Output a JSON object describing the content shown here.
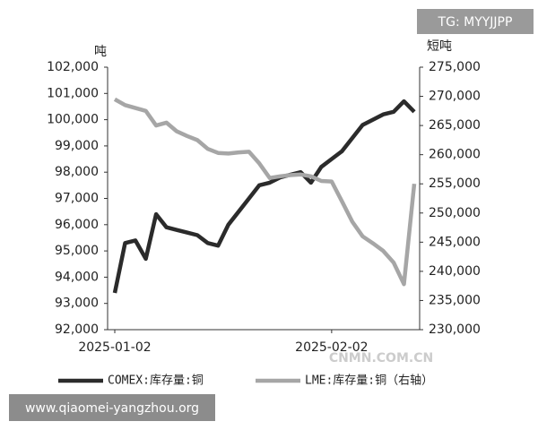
{
  "chart_data": {
    "type": "line",
    "y_unit": "吨",
    "y2_unit": "短吨",
    "categories": [
      "2025-01-02",
      null,
      null,
      null,
      null,
      null,
      null,
      null,
      null,
      null,
      null,
      null,
      null,
      null,
      null,
      null,
      null,
      null,
      null,
      null,
      null,
      "2025-02-02",
      null,
      null,
      null,
      null,
      null,
      null,
      null,
      null
    ],
    "series": [
      {
        "name": "COMEX:库存量:铜",
        "color": "#2b2b2b",
        "axis": "y",
        "values": [
          93400,
          95300,
          95400,
          94700,
          96400,
          95900,
          95800,
          95700,
          95600,
          95300,
          95200,
          96000,
          96500,
          97000,
          97500,
          97600,
          97800,
          97900,
          98000,
          97600,
          98200,
          98500,
          98800,
          99300,
          99800,
          100000,
          100200,
          100300,
          100700,
          100300
        ]
      },
      {
        "name": "LME:库存量:铜（右轴）",
        "color": "#a6a6a6",
        "axis": "y2",
        "values": [
          269500,
          268500,
          268000,
          267500,
          265000,
          265500,
          264000,
          263200,
          262500,
          261000,
          260300,
          260200,
          260400,
          260500,
          258500,
          256000,
          256300,
          256500,
          256600,
          256300,
          255500,
          255400,
          252000,
          248500,
          246000,
          244800,
          243500,
          241500,
          237800,
          255000
        ]
      }
    ],
    "ylim": [
      92000,
      102000
    ],
    "yticks": [
      {
        "value": 92000,
        "label": "92,000"
      },
      {
        "value": 93000,
        "label": "93,000"
      },
      {
        "value": 94000,
        "label": "94,000"
      },
      {
        "value": 95000,
        "label": "95,000"
      },
      {
        "value": 96000,
        "label": "96,000"
      },
      {
        "value": 97000,
        "label": "97,000"
      },
      {
        "value": 98000,
        "label": "98,000"
      },
      {
        "value": 99000,
        "label": "99,000"
      },
      {
        "value": 100000,
        "label": "100,000"
      },
      {
        "value": 101000,
        "label": "101,000"
      },
      {
        "value": 102000,
        "label": "102,000"
      }
    ],
    "y2lim": [
      230000,
      275000
    ],
    "y2ticks": [
      {
        "value": 230000,
        "label": "230,000"
      },
      {
        "value": 235000,
        "label": "235,000"
      },
      {
        "value": 240000,
        "label": "240,000"
      },
      {
        "value": 245000,
        "label": "245,000"
      },
      {
        "value": 250000,
        "label": "250,000"
      },
      {
        "value": 255000,
        "label": "255,000"
      },
      {
        "value": 260000,
        "label": "260,000"
      },
      {
        "value": 265000,
        "label": "265,000"
      },
      {
        "value": 270000,
        "label": "270,000"
      },
      {
        "value": 275000,
        "label": "275,000"
      }
    ],
    "legend": "bottom"
  },
  "watermarks": [
    "TG: MYYJJPP",
    "CNMN.COM.CN",
    "www.qiaomei-yangzhou.org"
  ]
}
